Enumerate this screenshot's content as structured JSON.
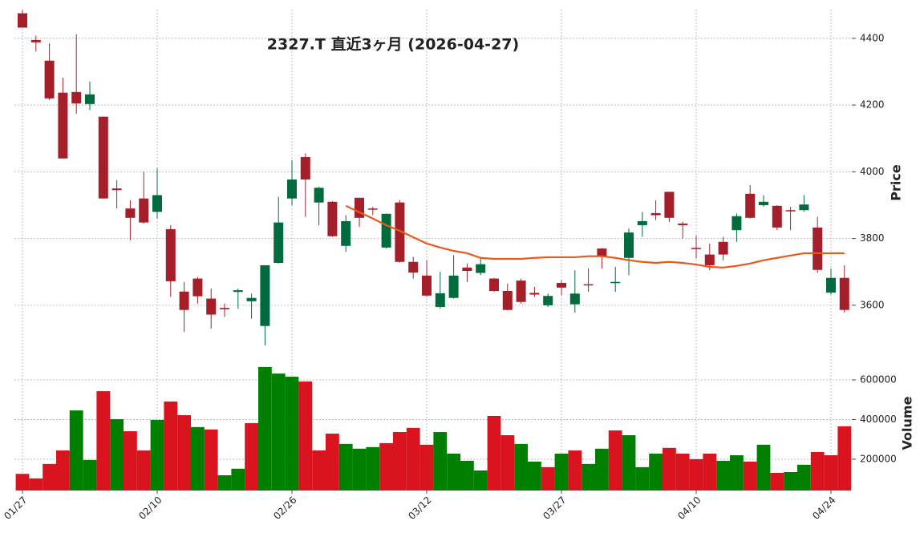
{
  "chart_data": {
    "type": "candlestick",
    "title": "2327.T  直近3ヶ月  (2026-04-27)",
    "categories": [
      "01/27",
      null,
      null,
      null,
      null,
      null,
      null,
      null,
      null,
      null,
      "02/10",
      null,
      null,
      null,
      null,
      null,
      null,
      null,
      null,
      null,
      "02/26",
      null,
      null,
      null,
      null,
      null,
      null,
      null,
      null,
      null,
      "03/12",
      null,
      null,
      null,
      null,
      null,
      null,
      null,
      null,
      null,
      "03/27",
      null,
      null,
      null,
      null,
      null,
      null,
      null,
      null,
      null,
      "04/10",
      null,
      null,
      null,
      null,
      null,
      null,
      null,
      null,
      null,
      "04/24",
      null
    ],
    "open": [
      4475,
      4395,
      4333,
      4237,
      4239,
      4203,
      4165,
      3950,
      3890,
      3920,
      3880,
      3828,
      3641,
      3680,
      3620,
      3592,
      3640,
      3612,
      3538,
      3727,
      3920,
      4044,
      3908,
      3910,
      3778,
      3922,
      3890,
      3773,
      3908,
      3730,
      3689,
      3595,
      3622,
      3713,
      3697,
      3680,
      3643,
      3674,
      3637,
      3600,
      3667,
      3603,
      3663,
      3770,
      3667,
      3742,
      3840,
      3876,
      3940,
      3845,
      3772,
      3752,
      3790,
      3825,
      3934,
      3900,
      3898,
      3885,
      3885,
      3833,
      3638,
      3682
    ],
    "high": [
      4485,
      4408,
      4385,
      4282,
      4412,
      4270,
      4165,
      3975,
      3915,
      4000,
      4010,
      3840,
      3670,
      3685,
      3650,
      3605,
      3650,
      3635,
      3720,
      3925,
      4035,
      4055,
      3955,
      3912,
      3870,
      3922,
      3895,
      3875,
      3915,
      3745,
      3735,
      3700,
      3750,
      3725,
      3745,
      3682,
      3665,
      3680,
      3655,
      3635,
      3675,
      3705,
      3710,
      3772,
      3715,
      3830,
      3880,
      3915,
      3940,
      3850,
      3808,
      3785,
      3805,
      3875,
      3960,
      3930,
      3900,
      3895,
      3930,
      3865,
      3710,
      3720
    ],
    "low": [
      4432,
      4360,
      4215,
      4040,
      4174,
      4185,
      3920,
      3890,
      3795,
      3845,
      3860,
      3625,
      3520,
      3605,
      3530,
      3565,
      3590,
      3560,
      3480,
      3725,
      3900,
      3865,
      3840,
      3805,
      3760,
      3835,
      3870,
      3770,
      3728,
      3680,
      3625,
      3590,
      3620,
      3670,
      3690,
      3640,
      3585,
      3605,
      3625,
      3595,
      3630,
      3578,
      3640,
      3710,
      3640,
      3690,
      3805,
      3855,
      3850,
      3800,
      3740,
      3705,
      3735,
      3790,
      3860,
      3895,
      3825,
      3825,
      3880,
      3697,
      3632,
      3578
    ],
    "close": [
      4432,
      4388,
      4220,
      4040,
      4205,
      4232,
      3920,
      3945,
      3862,
      3848,
      3930,
      3672,
      3586,
      3627,
      3572,
      3588,
      3645,
      3622,
      3720,
      3848,
      3977,
      3977,
      3952,
      3807,
      3852,
      3862,
      3887,
      3874,
      3730,
      3698,
      3629,
      3636,
      3689,
      3703,
      3723,
      3643,
      3586,
      3610,
      3632,
      3628,
      3653,
      3635,
      3660,
      3747,
      3670,
      3818,
      3852,
      3870,
      3862,
      3840,
      3770,
      3720,
      3752,
      3867,
      3862,
      3910,
      3833,
      3882,
      3902,
      3706,
      3682,
      3586
    ],
    "up_color": "#006b3c",
    "down_color": "#a41f2a",
    "ylim": [
      3458,
      4486
    ],
    "yticks": [
      3600,
      3800,
      4000,
      4200,
      4400
    ],
    "ylabel": "Price",
    "grid": true,
    "overlay": {
      "color": "#e8591c",
      "values": [
        null,
        null,
        null,
        null,
        null,
        null,
        null,
        null,
        null,
        null,
        null,
        null,
        null,
        null,
        null,
        null,
        null,
        null,
        null,
        null,
        null,
        null,
        null,
        null,
        3898,
        3879,
        3860,
        3840,
        3823,
        3804,
        3785,
        3773,
        3763,
        3756,
        3742,
        3739,
        3739,
        3739,
        3742,
        3744,
        3744,
        3744,
        3747,
        3747,
        3742,
        3735,
        3730,
        3727,
        3730,
        3727,
        3722,
        3715,
        3713,
        3718,
        3725,
        3735,
        3742,
        3749,
        3756,
        3756,
        3756,
        3756
      ]
    },
    "volume": {
      "ylabel": "Volume",
      "ylim": [
        42000,
        697000
      ],
      "yticks": [
        200000,
        400000,
        600000
      ],
      "values": [
        126000,
        103000,
        176000,
        244000,
        446000,
        196000,
        543000,
        402000,
        341000,
        244000,
        398000,
        491000,
        422000,
        362000,
        350000,
        119000,
        152000,
        382000,
        665000,
        632000,
        616000,
        592000,
        244000,
        329000,
        277000,
        253000,
        261000,
        281000,
        337000,
        358000,
        273000,
        337000,
        228000,
        192000,
        143000,
        418000,
        321000,
        277000,
        188000,
        160000,
        228000,
        244000,
        176000,
        253000,
        345000,
        321000,
        160000,
        228000,
        257000,
        228000,
        200000,
        228000,
        192000,
        220000,
        188000,
        273000,
        131000,
        135000,
        172000,
        236000,
        220000,
        366000
      ],
      "colors": [
        "#d9141e",
        "#d9141e",
        "#d9141e",
        "#d9141e",
        "#008000",
        "#008000",
        "#d9141e",
        "#008000",
        "#d9141e",
        "#d9141e",
        "#008000",
        "#d9141e",
        "#d9141e",
        "#008000",
        "#d9141e",
        "#008000",
        "#008000",
        "#d9141e",
        "#008000",
        "#008000",
        "#008000",
        "#d9141e",
        "#d9141e",
        "#d9141e",
        "#008000",
        "#008000",
        "#008000",
        "#d9141e",
        "#d9141e",
        "#d9141e",
        "#d9141e",
        "#008000",
        "#008000",
        "#008000",
        "#008000",
        "#d9141e",
        "#d9141e",
        "#008000",
        "#008000",
        "#d9141e",
        "#008000",
        "#d9141e",
        "#008000",
        "#008000",
        "#d9141e",
        "#008000",
        "#008000",
        "#008000",
        "#d9141e",
        "#d9141e",
        "#d9141e",
        "#d9141e",
        "#008000",
        "#008000",
        "#d9141e",
        "#008000",
        "#d9141e",
        "#008000",
        "#008000",
        "#d9141e",
        "#d9141e",
        "#d9141e"
      ]
    }
  }
}
